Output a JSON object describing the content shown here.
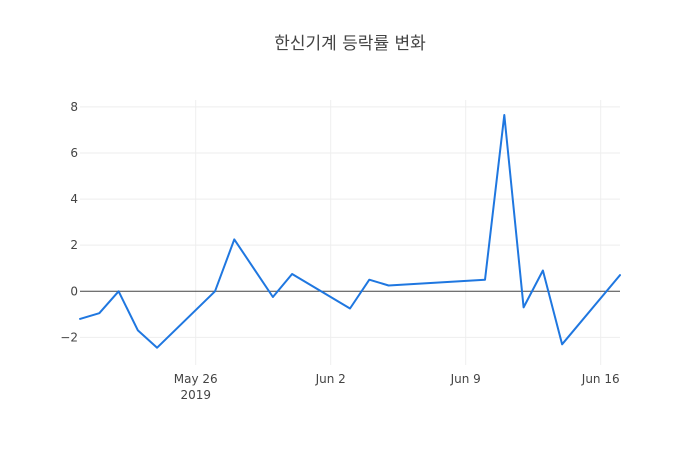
{
  "chart_data": {
    "type": "line",
    "title": "한신기계 등락률 변화",
    "xlabel": "",
    "ylabel": "",
    "x_ticks": [
      {
        "date": "2019-05-26",
        "label": "May 26",
        "sublabel": "2019"
      },
      {
        "date": "2019-06-02",
        "label": "Jun 2",
        "sublabel": ""
      },
      {
        "date": "2019-06-09",
        "label": "Jun 9",
        "sublabel": ""
      },
      {
        "date": "2019-06-16",
        "label": "Jun 16",
        "sublabel": ""
      }
    ],
    "y_ticks": [
      {
        "value": -2,
        "label": "−2"
      },
      {
        "value": 0,
        "label": "0"
      },
      {
        "value": 2,
        "label": "2"
      },
      {
        "value": 4,
        "label": "4"
      },
      {
        "value": 6,
        "label": "6"
      },
      {
        "value": 8,
        "label": "8"
      }
    ],
    "xlim": [
      "2019-05-20",
      "2019-06-17"
    ],
    "ylim": [
      -3.2,
      8.3
    ],
    "grid": true,
    "legend": "none",
    "series": [
      {
        "color": "#1f77e0",
        "points": [
          {
            "x": "2019-05-20",
            "y": -1.2
          },
          {
            "x": "2019-05-21",
            "y": -0.95
          },
          {
            "x": "2019-05-22",
            "y": 0.0
          },
          {
            "x": "2019-05-23",
            "y": -1.7
          },
          {
            "x": "2019-05-24",
            "y": -2.45
          },
          {
            "x": "2019-05-27",
            "y": 0.0
          },
          {
            "x": "2019-05-28",
            "y": 2.25
          },
          {
            "x": "2019-05-30",
            "y": -0.25
          },
          {
            "x": "2019-05-31",
            "y": 0.75
          },
          {
            "x": "2019-06-03",
            "y": -0.75
          },
          {
            "x": "2019-06-04",
            "y": 0.5
          },
          {
            "x": "2019-06-05",
            "y": 0.25
          },
          {
            "x": "2019-06-10",
            "y": 0.5
          },
          {
            "x": "2019-06-11",
            "y": 7.65
          },
          {
            "x": "2019-06-12",
            "y": -0.7
          },
          {
            "x": "2019-06-13",
            "y": 0.9
          },
          {
            "x": "2019-06-14",
            "y": -2.3
          },
          {
            "x": "2019-06-17",
            "y": 0.7
          }
        ]
      }
    ]
  }
}
